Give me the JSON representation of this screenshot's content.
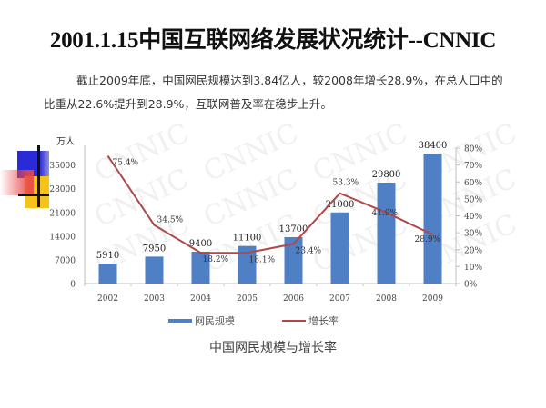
{
  "slide": {
    "title": "2001.1.15中国互联网络发展状况统计--CNNIC",
    "paragraph": "截止2009年底，中国网民规模达到3.84亿人，较2008年增长28.9%，在总人口中的比重从22.6%提升到28.9%，互联网普及率在稳步上升。",
    "watermark": "CNNIC"
  },
  "colors": {
    "bar": "#4f7fc4",
    "line": "#b04848",
    "axis": "#bfbfbf",
    "text": "#333333"
  },
  "chart_data": {
    "type": "bar+line",
    "title": "中国网民规模与增长率",
    "categories": [
      "2002",
      "2003",
      "2004",
      "2005",
      "2006",
      "2007",
      "2008",
      "2009"
    ],
    "series": [
      {
        "name": "网民规模",
        "type": "bar",
        "axis": "left",
        "values": [
          5910,
          7950,
          9400,
          11100,
          13700,
          21000,
          29800,
          38400
        ],
        "labels": [
          "5910",
          "7950",
          "9400",
          "11100",
          "13700",
          "21000",
          "29800",
          "38400"
        ]
      },
      {
        "name": "增长率",
        "type": "line",
        "axis": "right",
        "values": [
          75.4,
          34.5,
          18.2,
          18.1,
          23.4,
          53.3,
          41.9,
          28.9
        ],
        "labels": [
          "75.4%",
          "34.5%",
          "18.2%",
          "18.1%",
          "23.4%",
          "53.3%",
          "41.9%",
          "28.9%"
        ]
      }
    ],
    "ylabel": "万人",
    "ylim": [
      0,
      40000
    ],
    "yticks": [
      "0",
      "7000",
      "14000",
      "21000",
      "28000",
      "35000"
    ],
    "y2lim": [
      0,
      80
    ],
    "y2ticks": [
      "0%",
      "10%",
      "20%",
      "30%",
      "40%",
      "50%",
      "60%",
      "70%",
      "80%"
    ],
    "legend": [
      "网民规模",
      "增长率"
    ],
    "legend_position": "bottom",
    "grid": false
  }
}
